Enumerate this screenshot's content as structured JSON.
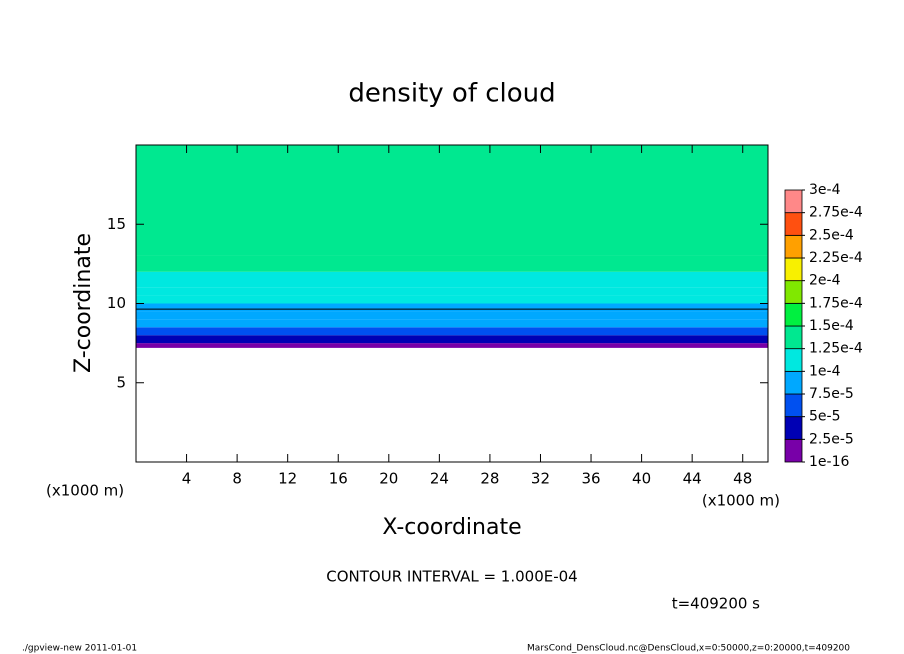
{
  "chart_data": {
    "type": "contour",
    "title": "density of cloud",
    "x_label": "X-coordinate",
    "y_label": "Z-coordinate",
    "x_unit_left": "(x1000 m)",
    "x_unit_right": "(x1000 m)",
    "xlim": [
      0,
      50
    ],
    "ylim": [
      0,
      20
    ],
    "xticks": [
      4,
      8,
      12,
      16,
      20,
      24,
      28,
      32,
      36,
      40,
      44,
      48
    ],
    "yticks": [
      5,
      10,
      15
    ],
    "field": {
      "z": [
        7.2,
        7.5,
        8.0,
        8.5,
        9.0,
        9.5,
        10.0,
        10.5,
        11.0,
        12.0,
        13.0
      ],
      "values": [
        1e-05,
        3e-05,
        6e-05,
        8e-05,
        9e-05,
        9.8e-05,
        0.000105,
        0.000115,
        0.00012,
        0.00013,
        0.00014
      ]
    },
    "colorbar": {
      "levels": [
        {
          "value": 1e-16,
          "label": "1e-16"
        },
        {
          "value": 2.5e-05,
          "label": "2.5e-5"
        },
        {
          "value": 5e-05,
          "label": "5e-5"
        },
        {
          "value": 7.5e-05,
          "label": "7.5e-5"
        },
        {
          "value": 0.0001,
          "label": "1e-4"
        },
        {
          "value": 0.000125,
          "label": "1.25e-4"
        },
        {
          "value": 0.00015,
          "label": "1.5e-4"
        },
        {
          "value": 0.000175,
          "label": "1.75e-4"
        },
        {
          "value": 0.0002,
          "label": "2e-4"
        },
        {
          "value": 0.000225,
          "label": "2.25e-4"
        },
        {
          "value": 0.00025,
          "label": "2.5e-4"
        },
        {
          "value": 0.000275,
          "label": "2.75e-4"
        },
        {
          "value": 0.0003,
          "label": "3e-4"
        }
      ],
      "colors": [
        "#7800a8",
        "#0000b4",
        "#0050f0",
        "#00a8ff",
        "#00e8e0",
        "#00e890",
        "#00f040",
        "#80e800",
        "#f8f000",
        "#ffa000",
        "#ff5010",
        "#ff8888"
      ]
    },
    "contour_interval": {
      "value": 0.0001,
      "label": "CONTOUR INTERVAL = 1.000E-04"
    },
    "time_label": "t=409200 s",
    "footer_left": "./gpview-new  2011-01-01",
    "footer_right": "MarsCond_DensCloud.nc@DensCloud,x=0:50000,z=0:20000,t=409200"
  }
}
